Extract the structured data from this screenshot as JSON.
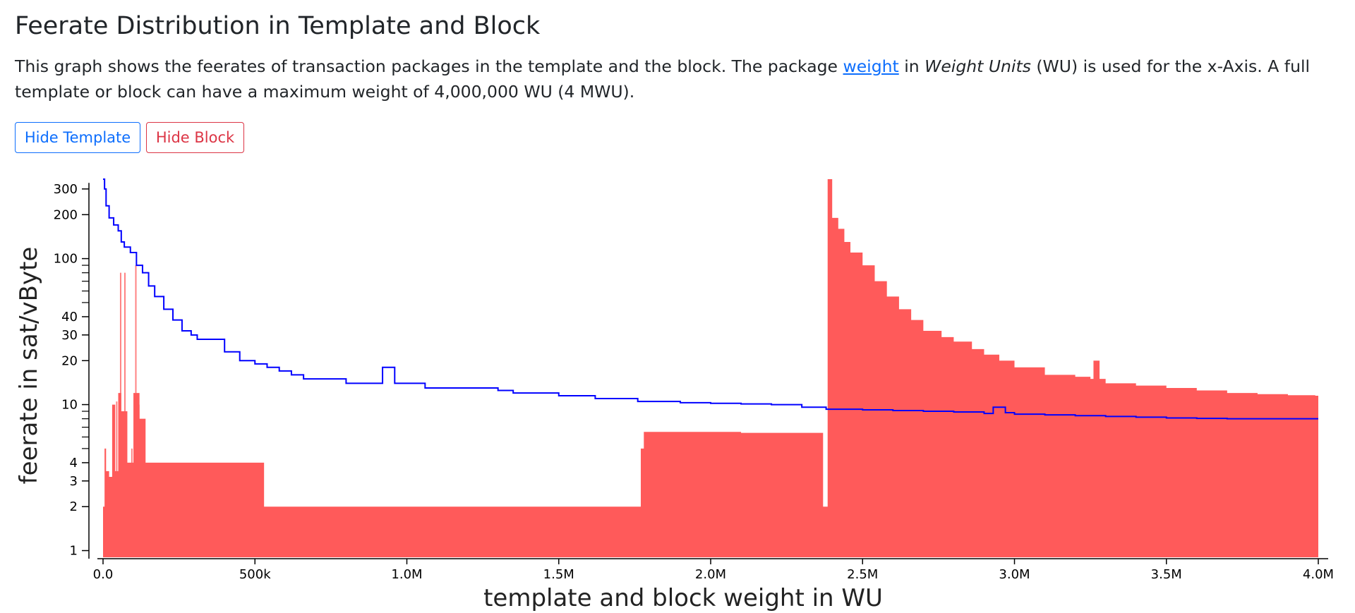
{
  "page": {
    "title": "Feerate Distribution in Template and Block",
    "desc_part1": "This graph shows the feerates of transaction packages in the template and the block. The package ",
    "desc_link": "weight",
    "desc_part2": " in ",
    "desc_em": "Weight Units",
    "desc_part3": " (WU) is used for the x-Axis. A full template or block can have a maximum weight of 4,000,000 WU (4 MWU)."
  },
  "buttons": {
    "hide_template": "Hide Template",
    "hide_block": "Hide Block"
  },
  "colors": {
    "template": "#0000ff",
    "block": "#ff5a5a",
    "btn_template": "#0d6efd",
    "btn_block": "#dc3545"
  },
  "chart_data": {
    "type": "area",
    "title": "",
    "xlabel": "template and block weight in WU",
    "ylabel": "feerate in sat/vByte",
    "xlim": [
      0,
      4000000
    ],
    "ylim": [
      0.9,
      400
    ],
    "y_scale": "log",
    "x_ticks": [
      {
        "v": 0,
        "label": "0.0"
      },
      {
        "v": 500000,
        "label": "500k"
      },
      {
        "v": 1000000,
        "label": "1.0M"
      },
      {
        "v": 1500000,
        "label": "1.5M"
      },
      {
        "v": 2000000,
        "label": "2.0M"
      },
      {
        "v": 2500000,
        "label": "2.5M"
      },
      {
        "v": 3000000,
        "label": "3.0M"
      },
      {
        "v": 3500000,
        "label": "3.5M"
      },
      {
        "v": 4000000,
        "label": "4.0M"
      }
    ],
    "y_ticks": [
      {
        "v": 1,
        "label": "1"
      },
      {
        "v": 2,
        "label": "2"
      },
      {
        "v": 3,
        "label": "3"
      },
      {
        "v": 4,
        "label": "4"
      },
      {
        "v": 10,
        "label": "10"
      },
      {
        "v": 20,
        "label": "20"
      },
      {
        "v": 30,
        "label": "30"
      },
      {
        "v": 40,
        "label": "40"
      },
      {
        "v": 100,
        "label": "100"
      },
      {
        "v": 200,
        "label": "200"
      },
      {
        "v": 300,
        "label": "300"
      }
    ],
    "y_minor_ticks": [
      5,
      6,
      7,
      8,
      9,
      50,
      60,
      70,
      80,
      90
    ],
    "series": [
      {
        "name": "Template",
        "kind": "step-line",
        "x": [
          0,
          5000,
          10000,
          20000,
          35000,
          50000,
          60000,
          70000,
          90000,
          110000,
          130000,
          150000,
          170000,
          200000,
          230000,
          260000,
          290000,
          310000,
          360000,
          400000,
          450000,
          500000,
          540000,
          580000,
          620000,
          660000,
          700000,
          760000,
          800000,
          860000,
          900000,
          920000,
          940000,
          960000,
          1000000,
          1060000,
          1100000,
          1150000,
          1200000,
          1300000,
          1350000,
          1400000,
          1500000,
          1550000,
          1620000,
          1700000,
          1760000,
          1800000,
          1900000,
          2000000,
          2100000,
          2200000,
          2300000,
          2380000,
          2500000,
          2600000,
          2700000,
          2800000,
          2900000,
          2930000,
          2970000,
          3000000,
          3100000,
          3200000,
          3300000,
          3400000,
          3500000,
          3600000,
          3700000,
          3800000,
          3900000,
          4000000
        ],
        "values": [
          350,
          300,
          230,
          190,
          170,
          155,
          130,
          120,
          110,
          90,
          80,
          65,
          55,
          45,
          38,
          32,
          30,
          28,
          28,
          23,
          20,
          19,
          18,
          17,
          16,
          15,
          15,
          15,
          14,
          14,
          14,
          18,
          18,
          14,
          14,
          13,
          13,
          13,
          13,
          12.5,
          12,
          12,
          11.5,
          11.5,
          11,
          11,
          10.5,
          10.5,
          10.3,
          10.2,
          10.1,
          10,
          9.6,
          9.3,
          9.2,
          9.1,
          9,
          8.9,
          8.7,
          9.6,
          8.8,
          8.6,
          8.5,
          8.4,
          8.3,
          8.2,
          8.1,
          8.05,
          8,
          8,
          8,
          8
        ]
      },
      {
        "name": "Block",
        "kind": "step-area",
        "x": [
          0,
          5000,
          10000,
          20000,
          30000,
          40000,
          50000,
          60000,
          80000,
          90000,
          100000,
          120000,
          140000,
          150000,
          170000,
          200000,
          300000,
          400000,
          480000,
          530000,
          800000,
          1200000,
          1500000,
          1760000,
          1770000,
          1780000,
          2000000,
          2100000,
          2300000,
          2370000,
          2380000,
          2385000,
          2400000,
          2420000,
          2440000,
          2460000,
          2500000,
          2540000,
          2580000,
          2620000,
          2660000,
          2700000,
          2760000,
          2800000,
          2860000,
          2900000,
          2950000,
          3000000,
          3100000,
          3200000,
          3250000,
          3260000,
          3280000,
          3300000,
          3400000,
          3500000,
          3600000,
          3700000,
          3800000,
          3900000,
          3990000,
          4000000
        ],
        "values": [
          2,
          5,
          3.5,
          3.2,
          10,
          3.5,
          12,
          9,
          4,
          4,
          12,
          8,
          4,
          4,
          4,
          4,
          4,
          4,
          4,
          2,
          2,
          2,
          2,
          2,
          5,
          6.5,
          6.5,
          6.4,
          6.4,
          2,
          2,
          350,
          190,
          160,
          130,
          110,
          90,
          70,
          55,
          45,
          38,
          32,
          29,
          27,
          24,
          22,
          20,
          18,
          16,
          15.5,
          15,
          20,
          15,
          14,
          13.5,
          13,
          12.5,
          12,
          11.8,
          11.6,
          11.5,
          11.5
        ]
      }
    ],
    "block_spikes": [
      {
        "x": 45000,
        "y": 10.5
      },
      {
        "x": 58000,
        "y": 80
      },
      {
        "x": 72000,
        "y": 80
      },
      {
        "x": 95000,
        "y": 5
      },
      {
        "x": 108000,
        "y": 90
      },
      {
        "x": 118000,
        "y": 10
      }
    ]
  }
}
